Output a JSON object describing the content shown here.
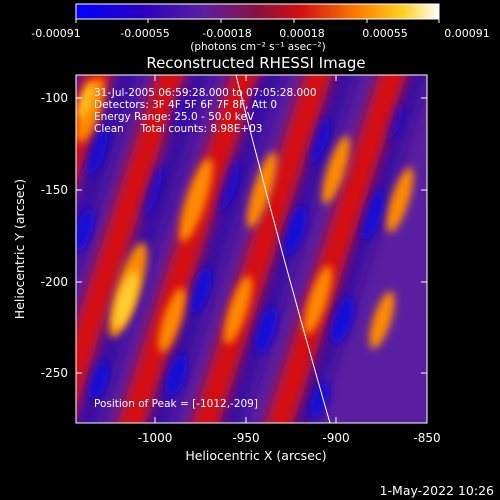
{
  "colorbar": {
    "ticks": [
      "-0.00091",
      "-0.00055",
      "-0.00018",
      "0.00018",
      "0.00055",
      "0.00091"
    ],
    "units": "(photons cm⁻² s⁻¹ asec⁻²)"
  },
  "title": "Reconstructed RHESSI Image",
  "annotations": {
    "time_range": "31-Jul-2005 06:59:28.000 to 07:05:28.000",
    "detectors": "Detectors: 3F 4F 5F 6F 7F 8F, Att 0",
    "energy_range": "Energy Range: 25.0 - 50.0 keV",
    "method": "Clean     Total counts: 8.98E+03",
    "peak": "Position of Peak = [-1012,-209]"
  },
  "axes": {
    "xlabel": "Heliocentric X (arcsec)",
    "ylabel": "Heliocentric Y (arcsec)",
    "xticks": [
      "-1000",
      "-950",
      "-900",
      "-850"
    ],
    "yticks": [
      "-100",
      "-150",
      "-200",
      "-250"
    ]
  },
  "footer": "1-May-2022 10:26"
}
